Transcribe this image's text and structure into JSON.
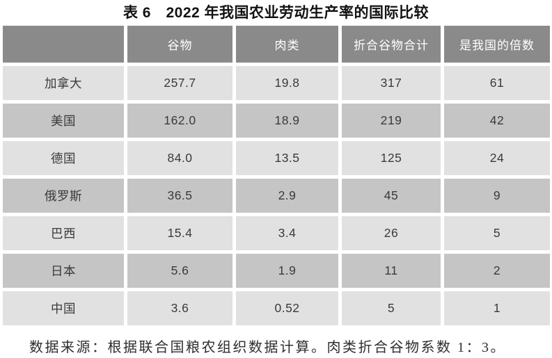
{
  "title": "表 6　2022 年我国农业劳动生产率的国际比较",
  "table": {
    "columns": [
      "",
      "谷物",
      "肉类",
      "折合谷物合计",
      "是我国的倍数"
    ],
    "rows": [
      {
        "country": "加拿大",
        "values": [
          "257.7",
          "19.8",
          "317",
          "61"
        ]
      },
      {
        "country": "美国",
        "values": [
          "162.0",
          "18.9",
          "219",
          "42"
        ]
      },
      {
        "country": "德国",
        "values": [
          "84.0",
          "13.5",
          "125",
          "24"
        ]
      },
      {
        "country": "俄罗斯",
        "values": [
          "36.5",
          "2.9",
          "45",
          "9"
        ]
      },
      {
        "country": "巴西",
        "values": [
          "15.4",
          "3.4",
          "26",
          "5"
        ]
      },
      {
        "country": "日本",
        "values": [
          "5.6",
          "1.9",
          "11",
          "2"
        ]
      },
      {
        "country": "中国",
        "values": [
          "3.6",
          "0.52",
          "5",
          "1"
        ]
      }
    ],
    "colors": {
      "header_bg": "#8a8a8a",
      "header_text": "#ffffff",
      "row_light_bg": "#e1e1e1",
      "row_dark_bg": "#c5c5c5",
      "cell_text": "#3a3a3a"
    }
  },
  "footnote": "数据来源：根据联合国粮农组织数据计算。肉类折合谷物系数 1：3。"
}
